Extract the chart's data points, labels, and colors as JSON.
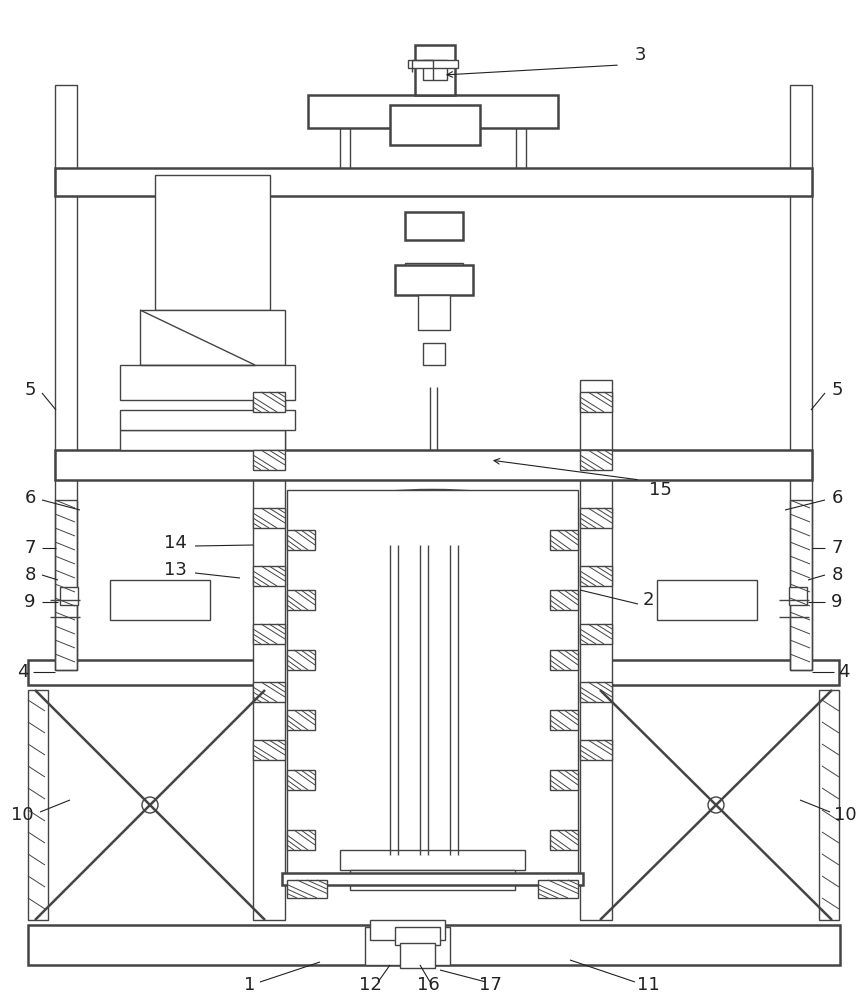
{
  "bg_color": "#ffffff",
  "lc": "#444444",
  "lw": 1.0,
  "tlw": 1.8,
  "fig_width": 8.67,
  "fig_height": 10.0,
  "dpi": 100
}
